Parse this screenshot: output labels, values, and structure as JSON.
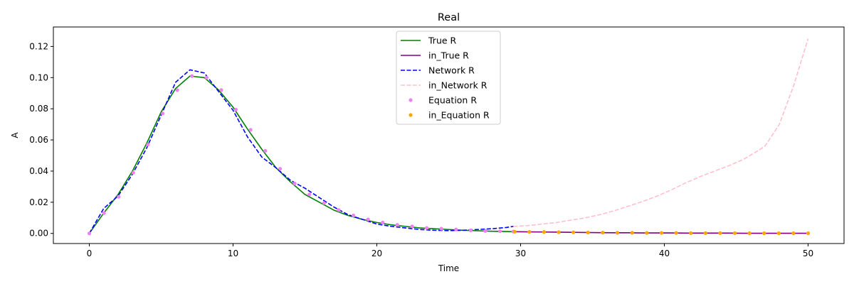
{
  "chart_data": {
    "type": "line",
    "title": "Real",
    "xlabel": "Time",
    "ylabel": "A",
    "xlim": [
      -2.5,
      52.5
    ],
    "ylim": [
      -0.0065,
      0.1325
    ],
    "xticks": [
      0,
      10,
      20,
      30,
      40,
      50
    ],
    "yticks": [
      0.0,
      0.02,
      0.04,
      0.06,
      0.08,
      0.1,
      0.12
    ],
    "ytick_labels": [
      "0.00",
      "0.02",
      "0.04",
      "0.06",
      "0.08",
      "0.10",
      "0.12"
    ],
    "grid": false,
    "legend_position": "top-center",
    "series": [
      {
        "name": "True R",
        "style": "line",
        "color": "#008000",
        "dash": "solid",
        "x": [
          0,
          1,
          2,
          3,
          4,
          5,
          6,
          7,
          8,
          9,
          10,
          11,
          12,
          13,
          14,
          15,
          16,
          17,
          18,
          19,
          20,
          21,
          22,
          23,
          24,
          25,
          26,
          27,
          28,
          29,
          29.5
        ],
        "y": [
          0.0,
          0.013,
          0.025,
          0.04,
          0.058,
          0.078,
          0.093,
          0.101,
          0.1,
          0.092,
          0.081,
          0.067,
          0.054,
          0.042,
          0.033,
          0.025,
          0.02,
          0.015,
          0.0115,
          0.009,
          0.007,
          0.0055,
          0.0045,
          0.0035,
          0.003,
          0.0025,
          0.002,
          0.0017,
          0.0014,
          0.0012,
          0.0011
        ]
      },
      {
        "name": "in_True R",
        "style": "line",
        "color": "#800080",
        "dash": "solid",
        "x": [
          29.5,
          30.5,
          31.5,
          32.5,
          33.5,
          34.5,
          35.5,
          36.5,
          37.5,
          38.5,
          39.5,
          40.5,
          41.5,
          42.5,
          43.5,
          44.5,
          45.5,
          46.5,
          47.5,
          48.5,
          50
        ],
        "y": [
          0.0011,
          0.001,
          0.0009,
          0.0008,
          0.0007,
          0.0006,
          0.0005,
          0.0004,
          0.0004,
          0.0003,
          0.0003,
          0.0003,
          0.0002,
          0.0002,
          0.0002,
          0.0002,
          0.0001,
          0.0001,
          0.0001,
          0.0001,
          0.0001
        ]
      },
      {
        "name": "Network R",
        "style": "line",
        "color": "#0000ff",
        "dash": "dashed",
        "x": [
          0,
          1,
          2,
          3,
          4,
          5,
          6,
          7,
          8,
          9,
          10,
          11,
          12,
          13,
          14,
          15,
          16,
          17,
          18,
          19,
          20,
          21,
          22,
          23,
          24,
          25,
          26,
          27,
          28,
          29,
          29.5
        ],
        "y": [
          0.0,
          0.016,
          0.024,
          0.038,
          0.055,
          0.076,
          0.097,
          0.105,
          0.103,
          0.091,
          0.079,
          0.062,
          0.049,
          0.042,
          0.034,
          0.029,
          0.023,
          0.017,
          0.012,
          0.009,
          0.006,
          0.0045,
          0.0035,
          0.0025,
          0.002,
          0.0018,
          0.002,
          0.0025,
          0.003,
          0.0038,
          0.0045
        ]
      },
      {
        "name": "in_Network R",
        "style": "line",
        "color": "#ffc0cb",
        "dash": "dashed",
        "x": [
          29.5,
          30.5,
          31.5,
          32.5,
          33.5,
          34.5,
          35.5,
          36.5,
          37.5,
          38.5,
          39.5,
          40.5,
          41.5,
          42.5,
          43.5,
          44.5,
          45.5,
          46.5,
          47,
          48,
          49,
          50
        ],
        "y": [
          0.0045,
          0.005,
          0.006,
          0.007,
          0.0085,
          0.01,
          0.012,
          0.0145,
          0.0175,
          0.0205,
          0.024,
          0.028,
          0.0325,
          0.0365,
          0.04,
          0.0435,
          0.0475,
          0.053,
          0.056,
          0.07,
          0.095,
          0.125
        ]
      },
      {
        "name": "Equation R",
        "style": "points",
        "color": "#ee82ee",
        "x": [
          0,
          1.02,
          2.04,
          3.06,
          4.08,
          5.1,
          6.12,
          7.14,
          8.16,
          9.18,
          10.2,
          11.22,
          12.24,
          13.27,
          14.29,
          15.31,
          16.33,
          17.35,
          18.37,
          19.39,
          20.41,
          21.43,
          22.45,
          23.47,
          24.49,
          25.51,
          26.53,
          27.55,
          28.57,
          29.5
        ],
        "y": [
          0.0,
          0.013,
          0.0235,
          0.039,
          0.057,
          0.077,
          0.092,
          0.101,
          0.1,
          0.092,
          0.0795,
          0.0665,
          0.053,
          0.0415,
          0.032,
          0.025,
          0.0195,
          0.015,
          0.0115,
          0.009,
          0.007,
          0.0055,
          0.0045,
          0.0035,
          0.003,
          0.0025,
          0.002,
          0.0016,
          0.0014,
          0.0012
        ]
      },
      {
        "name": "in_Equation R",
        "style": "points",
        "color": "#ffa500",
        "x": [
          29.59,
          30.61,
          31.63,
          32.65,
          33.67,
          34.69,
          35.71,
          36.73,
          37.76,
          38.78,
          39.8,
          40.82,
          41.84,
          42.86,
          43.88,
          44.9,
          45.92,
          46.94,
          47.96,
          48.98,
          50
        ],
        "y": [
          0.0011,
          0.001,
          0.0009,
          0.0008,
          0.0007,
          0.0006,
          0.0005,
          0.0004,
          0.0004,
          0.0003,
          0.0003,
          0.0003,
          0.0002,
          0.0002,
          0.0002,
          0.0002,
          0.0001,
          0.0001,
          0.0001,
          0.0001,
          0.0001
        ]
      }
    ]
  }
}
